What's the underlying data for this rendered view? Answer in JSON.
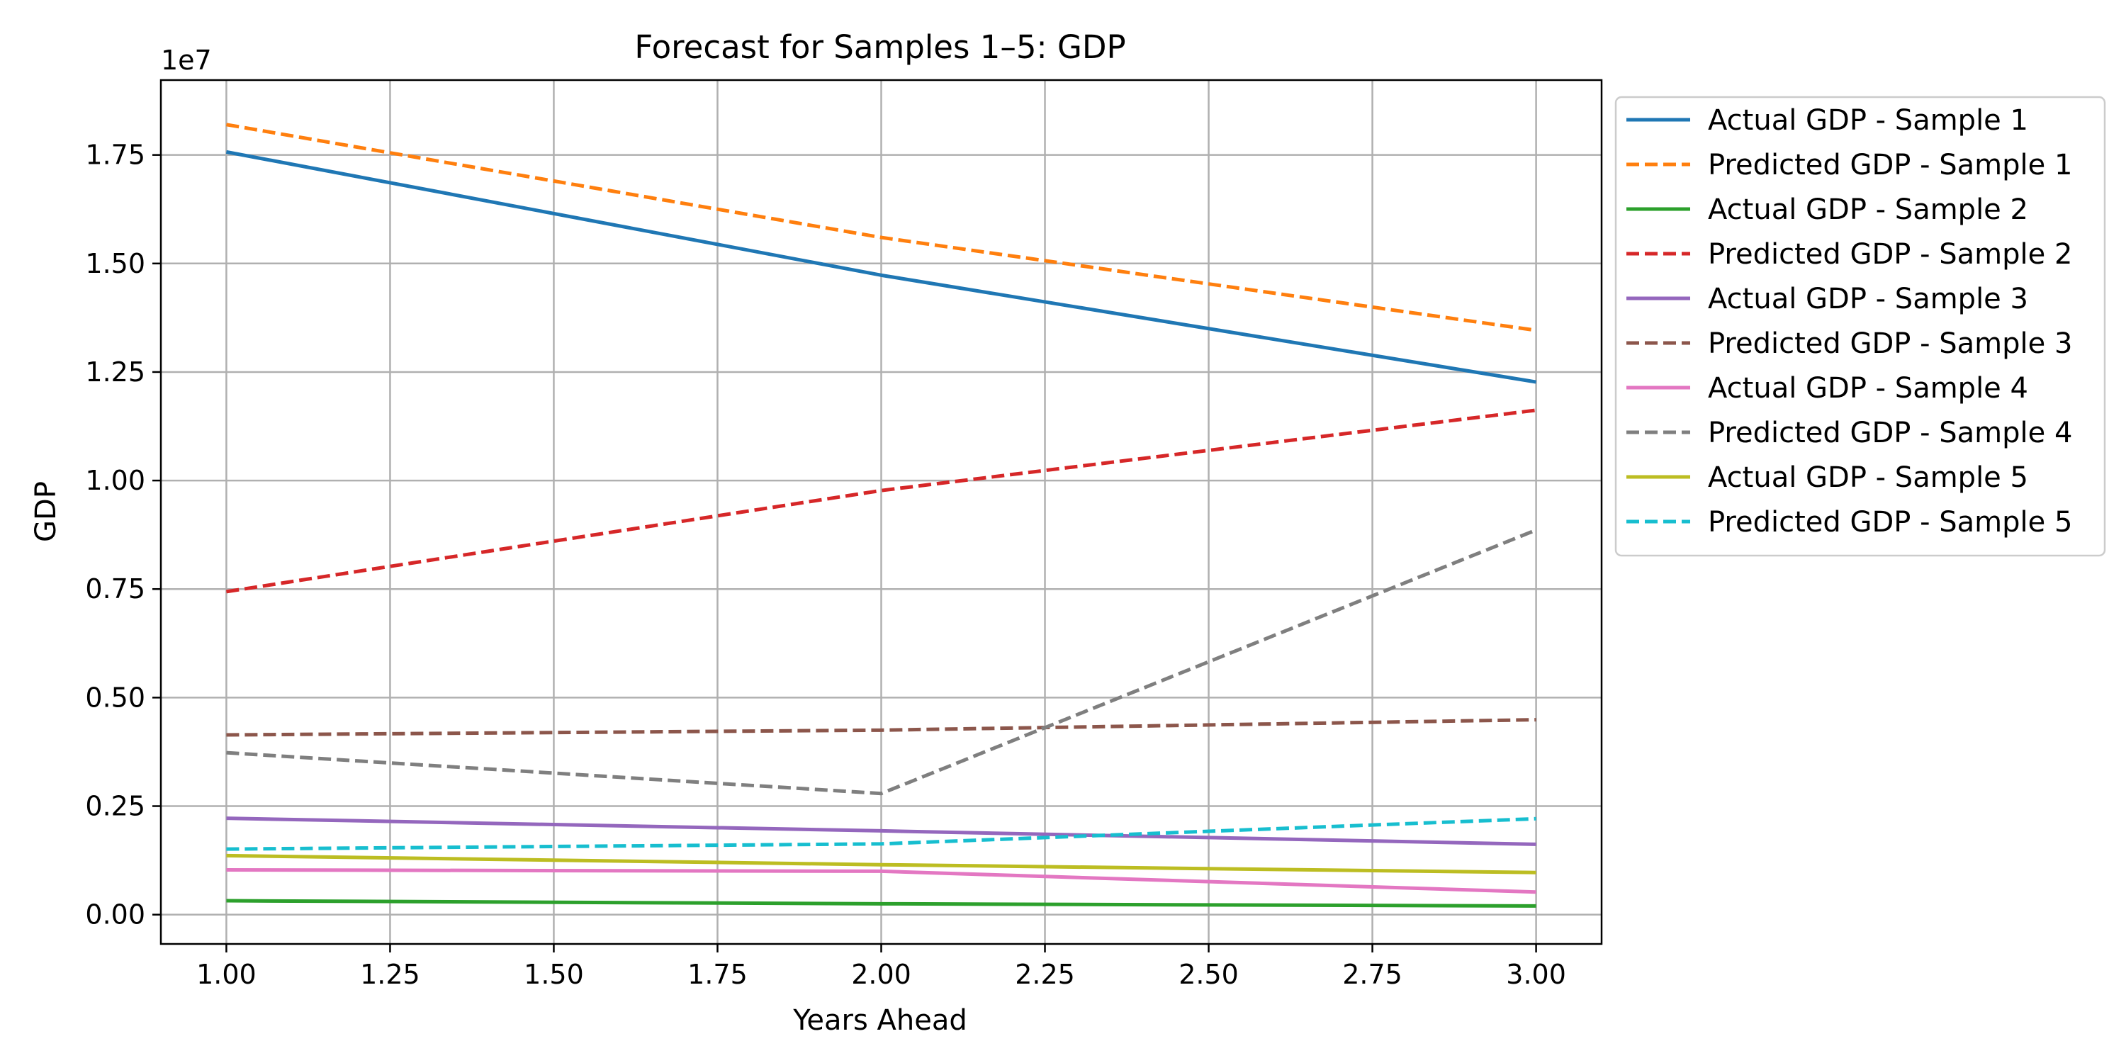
{
  "chart_data": {
    "type": "line",
    "title": "Forecast for Samples 1–5: GDP",
    "xlabel": "Years Ahead",
    "ylabel": "GDP",
    "y_offset_label": "1e7",
    "xlim": [
      0.9,
      3.1
    ],
    "ylim": [
      -0.0675,
      1.9225
    ],
    "x_ticks": [
      1.0,
      1.25,
      1.5,
      1.75,
      2.0,
      2.25,
      2.5,
      2.75,
      3.0
    ],
    "x_tick_labels": [
      "1.00",
      "1.25",
      "1.50",
      "1.75",
      "2.00",
      "2.25",
      "2.50",
      "2.75",
      "3.00"
    ],
    "y_ticks": [
      0.0,
      0.25,
      0.5,
      0.75,
      1.0,
      1.25,
      1.5,
      1.75
    ],
    "y_tick_labels": [
      "0.00",
      "0.25",
      "0.50",
      "0.75",
      "1.00",
      "1.25",
      "1.50",
      "1.75"
    ],
    "y_unit_multiplier": 10000000,
    "grid": true,
    "legend_position": "outside-right-top",
    "x": [
      1,
      2,
      3
    ],
    "series": [
      {
        "name": "Actual GDP - Sample 1",
        "values": [
          1.757,
          1.473,
          1.227
        ],
        "color": "#1f77b4",
        "dash": "solid"
      },
      {
        "name": "Predicted GDP - Sample 1",
        "values": [
          1.82,
          1.56,
          1.346
        ],
        "color": "#ff7f0e",
        "dash": "dashed"
      },
      {
        "name": "Actual GDP - Sample 2",
        "values": [
          0.032,
          0.025,
          0.02
        ],
        "color": "#2ca02c",
        "dash": "solid"
      },
      {
        "name": "Predicted GDP - Sample 2",
        "values": [
          0.744,
          0.977,
          1.162
        ],
        "color": "#d62728",
        "dash": "dashed"
      },
      {
        "name": "Actual GDP - Sample 3",
        "values": [
          0.222,
          0.193,
          0.162
        ],
        "color": "#9467bd",
        "dash": "solid"
      },
      {
        "name": "Predicted GDP - Sample 3",
        "values": [
          0.414,
          0.425,
          0.449
        ],
        "color": "#8c564b",
        "dash": "dashed"
      },
      {
        "name": "Actual GDP - Sample 4",
        "values": [
          0.103,
          0.1,
          0.052
        ],
        "color": "#e377c2",
        "dash": "solid"
      },
      {
        "name": "Predicted GDP - Sample 4",
        "values": [
          0.373,
          0.279,
          0.886
        ],
        "color": "#7f7f7f",
        "dash": "dashed"
      },
      {
        "name": "Actual GDP - Sample 5",
        "values": [
          0.136,
          0.115,
          0.097
        ],
        "color": "#bcbd22",
        "dash": "solid"
      },
      {
        "name": "Predicted GDP - Sample 5",
        "values": [
          0.151,
          0.163,
          0.221
        ],
        "color": "#17becf",
        "dash": "dashed"
      }
    ]
  }
}
